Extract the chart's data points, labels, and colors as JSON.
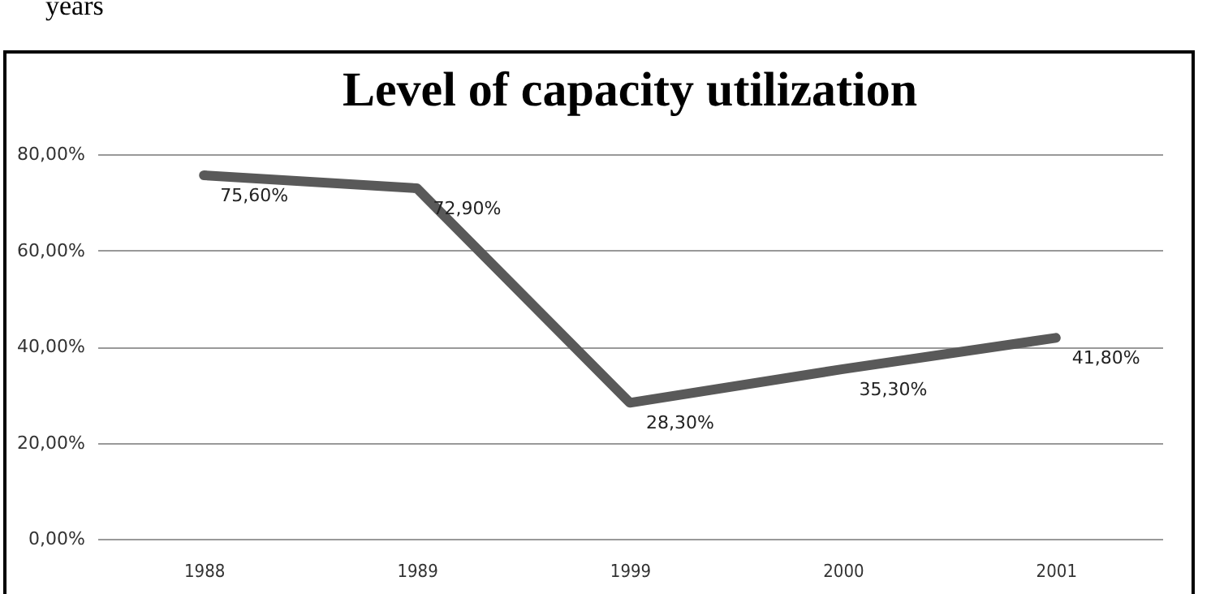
{
  "chart_data": {
    "type": "line",
    "title": "Level of capacity utilization",
    "annotations": [
      "years"
    ],
    "categories": [
      "1988",
      "1989",
      "1999",
      "2000",
      "2001"
    ],
    "values": [
      75.6,
      72.9,
      28.3,
      35.3,
      41.8
    ],
    "value_labels": [
      "75,60%",
      "72,90%",
      "28,30%",
      "35,30%",
      "41,80%"
    ],
    "color": "#595959",
    "ylim": [
      0,
      80
    ],
    "yticks": [
      {
        "value": 0,
        "label": "0,00%"
      },
      {
        "value": 20,
        "label": "20,00%"
      },
      {
        "value": 40,
        "label": "40,00%"
      },
      {
        "value": 60,
        "label": "60,00%"
      },
      {
        "value": 80,
        "label": "80,00%"
      }
    ],
    "grid": "y",
    "marker": "none",
    "line_style": "solid"
  }
}
